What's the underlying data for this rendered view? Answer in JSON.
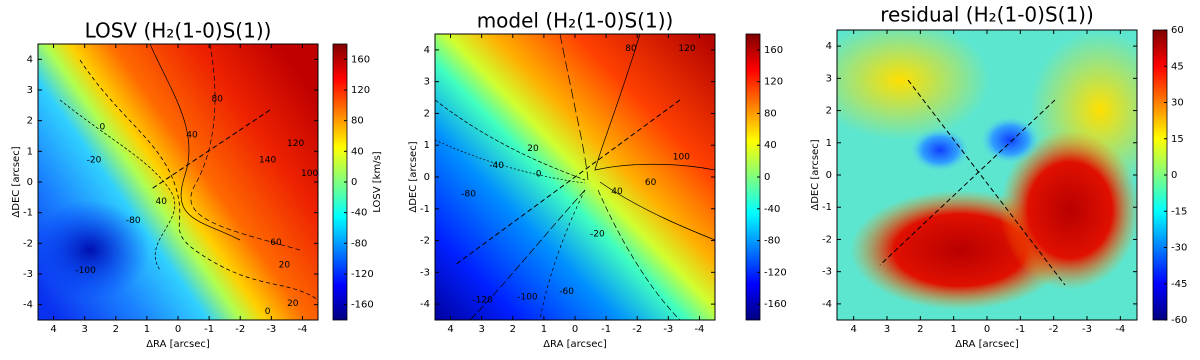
{
  "chart_data": [
    {
      "type": "map",
      "title": "LOSV (H₂(1-0)S(1))",
      "x_label": "ΔRA [arcsec]",
      "y_label": "ΔDEC [arcsec]",
      "xlim": [
        4.5,
        -4.5
      ],
      "xticks": [
        4,
        3,
        2,
        1,
        0,
        -1,
        -2,
        -3,
        -4
      ],
      "ylim": [
        -4.5,
        4.5
      ],
      "yticks": [
        -4,
        -3,
        -2,
        -1,
        0,
        1,
        2,
        3,
        4
      ],
      "colorbar_label": "LOSV [km/s]",
      "clim": [
        -180,
        180
      ],
      "cticks": [
        -160,
        -120,
        -80,
        -40,
        0,
        40,
        80,
        120,
        160
      ],
      "contour_labels": [
        0,
        -20,
        40,
        80,
        140,
        120,
        100,
        60,
        20,
        -80,
        40,
        -100,
        20,
        0
      ]
    },
    {
      "type": "map",
      "title": "model (H₂(1-0)S(1))",
      "x_label": "ΔRA [arcsec]",
      "y_label": "ΔDEC [arcsec]",
      "xlim": [
        4.5,
        -4.5
      ],
      "xticks": [
        4,
        3,
        2,
        1,
        0,
        -1,
        -2,
        -3,
        -4
      ],
      "ylim": [
        -4.5,
        4.5
      ],
      "yticks": [
        -4,
        -3,
        -2,
        -1,
        0,
        1,
        2,
        3,
        4
      ],
      "clim": [
        -180,
        180
      ],
      "cticks": [
        -160,
        -120,
        -80,
        -40,
        0,
        40,
        80,
        120,
        160
      ],
      "contour_labels": [
        80,
        120,
        20,
        -40,
        0,
        -80,
        100,
        60,
        40,
        -20,
        -60,
        -100,
        -120
      ]
    },
    {
      "type": "map",
      "title": "residual (H₂(1-0)S(1))",
      "x_label": "ΔRA [arcsec]",
      "y_label": "ΔDEC [arcsec]",
      "xlim": [
        4.5,
        -4.5
      ],
      "xticks": [
        4,
        3,
        2,
        1,
        0,
        -1,
        -2,
        -3,
        -4
      ],
      "ylim": [
        -4.5,
        4.5
      ],
      "yticks": [
        -4,
        -3,
        -2,
        -1,
        0,
        1,
        2,
        3,
        4
      ],
      "clim": [
        -60,
        60
      ],
      "cticks": [
        -60,
        -45,
        -30,
        -15,
        0,
        15,
        30,
        45,
        60
      ]
    }
  ]
}
